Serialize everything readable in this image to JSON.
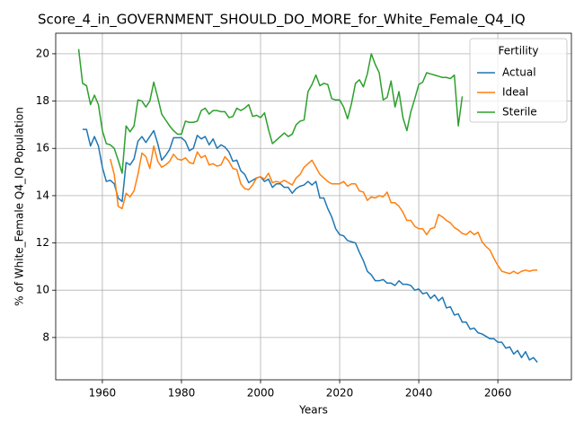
{
  "chart_data": {
    "type": "line",
    "title": "Score_4_in_GOVERNMENT_SHOULD_DO_MORE_for_White_Female_Q4_IQ",
    "xlabel": "Years",
    "ylabel": "% of White_Female Q4_IQ Population",
    "legend_title": "Fertility",
    "legend": "upper right",
    "grid": true,
    "x": [
      1954,
      1955,
      1956,
      1957,
      1958,
      1959,
      1960,
      1961,
      1962,
      1963,
      1964,
      1965,
      1966,
      1967,
      1968,
      1969,
      1970,
      1971,
      1972,
      1973,
      1974,
      1975,
      1976,
      1977,
      1978,
      1979,
      1980,
      1981,
      1982,
      1983,
      1984,
      1985,
      1986,
      1987,
      1988,
      1989,
      1990,
      1991,
      1992,
      1993,
      1994,
      1995,
      1996,
      1997,
      1998,
      1999,
      2000,
      2001,
      2002,
      2003,
      2004,
      2005,
      2006,
      2007,
      2008,
      2009,
      2010,
      2011,
      2012,
      2013,
      2014,
      2015,
      2016,
      2017,
      2018,
      2019,
      2020,
      2021,
      2022,
      2023,
      2024,
      2025,
      2026,
      2027,
      2028,
      2029,
      2030,
      2031,
      2032,
      2033,
      2034,
      2035,
      2036,
      2037,
      2038,
      2039,
      2040,
      2041,
      2042,
      2043,
      2044,
      2045,
      2046,
      2047,
      2048,
      2049,
      2050,
      2051,
      2052,
      2053,
      2054,
      2055,
      2056,
      2057,
      2058,
      2059,
      2060,
      2061,
      2062,
      2063,
      2064,
      2065,
      2066,
      2067,
      2068,
      2069,
      2070
    ],
    "series": [
      {
        "name": "Actual",
        "color": "#1f77b4",
        "values": [
          null,
          16.8,
          16.8,
          16.1,
          16.5,
          16.1,
          15.2,
          14.6,
          14.65,
          14.5,
          13.9,
          13.75,
          15.4,
          15.3,
          15.55,
          16.3,
          16.5,
          16.25,
          16.5,
          16.75,
          16.2,
          15.5,
          15.7,
          15.95,
          16.45,
          16.45,
          16.45,
          16.3,
          15.9,
          16.0,
          16.55,
          16.4,
          16.5,
          16.15,
          16.4,
          16.0,
          16.15,
          16.05,
          15.85,
          15.45,
          15.5,
          15.05,
          14.9,
          14.55,
          14.65,
          14.75,
          14.8,
          14.6,
          14.7,
          14.35,
          14.5,
          14.5,
          14.35,
          14.35,
          14.1,
          14.3,
          14.4,
          14.45,
          14.6,
          14.45,
          14.6,
          13.9,
          13.9,
          13.45,
          13.1,
          12.6,
          12.35,
          12.3,
          12.1,
          12.05,
          12.0,
          11.6,
          11.25,
          10.8,
          10.65,
          10.4,
          10.4,
          10.45,
          10.3,
          10.3,
          10.2,
          10.4,
          10.25,
          10.25,
          10.2,
          10.0,
          10.05,
          9.85,
          9.9,
          9.65,
          9.8,
          9.55,
          9.7,
          9.25,
          9.3,
          8.95,
          9.0,
          8.65,
          8.65,
          8.35,
          8.4,
          8.2,
          8.15,
          8.05,
          7.95,
          7.95,
          7.8,
          7.8,
          7.55,
          7.6,
          7.3,
          7.45,
          7.15,
          7.4,
          7.05,
          7.15,
          6.95
        ]
      },
      {
        "name": "Ideal",
        "color": "#ff7f0e",
        "values": [
          null,
          null,
          null,
          null,
          null,
          null,
          null,
          null,
          15.55,
          14.9,
          13.55,
          13.45,
          14.1,
          13.95,
          14.2,
          14.9,
          15.8,
          15.65,
          15.15,
          16.1,
          15.45,
          15.2,
          15.3,
          15.45,
          15.75,
          15.55,
          15.5,
          15.6,
          15.4,
          15.35,
          15.85,
          15.6,
          15.7,
          15.3,
          15.35,
          15.25,
          15.3,
          15.65,
          15.45,
          15.15,
          15.1,
          14.5,
          14.3,
          14.25,
          14.45,
          14.75,
          14.8,
          14.7,
          14.95,
          14.55,
          14.6,
          14.55,
          14.65,
          14.55,
          14.45,
          14.75,
          14.9,
          15.2,
          15.35,
          15.5,
          15.2,
          14.9,
          14.75,
          14.6,
          14.5,
          14.5,
          14.5,
          14.6,
          14.4,
          14.5,
          14.5,
          14.2,
          14.15,
          13.8,
          13.95,
          13.9,
          14.0,
          13.95,
          14.15,
          13.7,
          13.7,
          13.55,
          13.3,
          12.95,
          12.95,
          12.7,
          12.6,
          12.6,
          12.35,
          12.6,
          12.65,
          13.2,
          13.1,
          12.95,
          12.85,
          12.65,
          12.55,
          12.4,
          12.35,
          12.5,
          12.35,
          12.45,
          12.05,
          11.85,
          11.7,
          11.35,
          11.05,
          10.8,
          10.75,
          10.7,
          10.8,
          10.7,
          10.8,
          10.85,
          10.8,
          10.85,
          10.85
        ]
      },
      {
        "name": "Sterile",
        "color": "#2ca02c",
        "values": [
          20.2,
          18.75,
          18.65,
          17.85,
          18.25,
          17.85,
          16.75,
          16.2,
          16.15,
          16.0,
          15.5,
          14.95,
          16.95,
          16.7,
          16.95,
          18.05,
          18.0,
          17.75,
          18.0,
          18.8,
          18.15,
          17.45,
          17.2,
          16.95,
          16.75,
          16.6,
          16.6,
          17.15,
          17.1,
          17.1,
          17.15,
          17.6,
          17.7,
          17.45,
          17.6,
          17.6,
          17.55,
          17.55,
          17.3,
          17.35,
          17.7,
          17.6,
          17.7,
          17.85,
          17.35,
          17.4,
          17.3,
          17.5,
          16.8,
          16.2,
          16.35,
          16.5,
          16.65,
          16.5,
          16.6,
          17.0,
          17.15,
          17.2,
          18.4,
          18.7,
          19.1,
          18.65,
          18.75,
          18.7,
          18.1,
          18.05,
          18.05,
          17.75,
          17.25,
          17.9,
          18.75,
          18.9,
          18.6,
          19.15,
          20.0,
          19.55,
          19.2,
          18.05,
          18.15,
          18.85,
          17.75,
          18.4,
          17.3,
          16.75,
          17.55,
          18.1,
          18.7,
          18.8,
          19.2,
          19.15,
          19.1,
          19.05,
          19.0,
          19.0,
          18.95,
          19.1,
          16.95,
          18.2,
          null,
          null,
          null,
          null,
          null,
          null,
          null,
          null,
          null,
          null,
          null,
          null,
          null,
          null,
          null,
          null,
          null,
          null,
          null
        ]
      }
    ],
    "xlim": [
      1948.2,
      2078.6
    ],
    "xticks": [
      1960,
      1980,
      2000,
      2020,
      2040,
      2060
    ],
    "ylim": [
      6.21,
      20.87
    ],
    "yticks": [
      8,
      10,
      12,
      14,
      16,
      18,
      20
    ]
  }
}
